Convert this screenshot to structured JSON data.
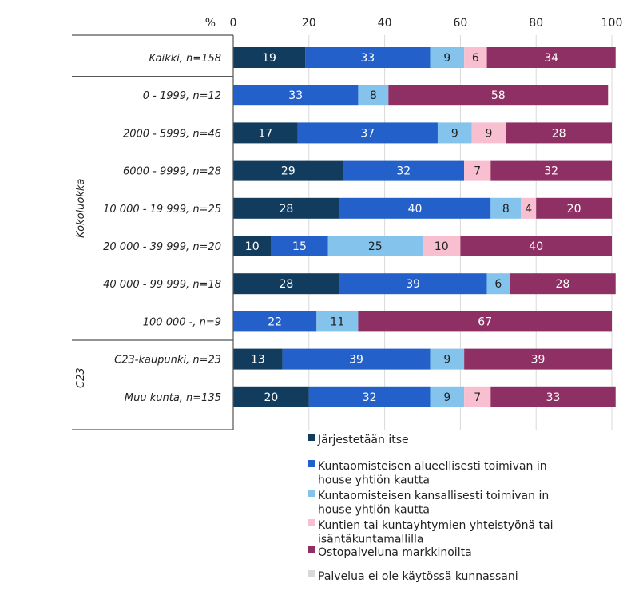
{
  "chart_data": {
    "type": "bar",
    "orientation": "horizontal",
    "stacked": true,
    "percent_symbol": "%",
    "xlim": [
      0,
      100
    ],
    "xticks": [
      0,
      20,
      40,
      60,
      80,
      100
    ],
    "grid": true,
    "categories": [
      "Kaikki, n=158",
      "0 - 1999, n=12",
      "2000 - 5999, n=46",
      "6000 - 9999, n=28",
      "10 000 - 19 999, n=25",
      "20 000 - 39 999, n=20",
      "40 000 - 99 999, n=18",
      "100 000 -, n=9",
      "C23-kaupunki, n=23",
      "Muu kunta, n=135"
    ],
    "groups": [
      {
        "label": "Kokoluokka",
        "first": 1,
        "last": 7
      },
      {
        "label": "C23",
        "first": 8,
        "last": 9
      }
    ],
    "series": [
      {
        "name": "Järjestetään itse",
        "color": "#123c5e",
        "text_color": "#ffffff",
        "values": [
          19,
          0,
          17,
          29,
          28,
          10,
          28,
          0,
          13,
          20
        ]
      },
      {
        "name": "Kuntaomisteisen alueellisesti toimivan in house yhtiön kautta",
        "color": "#2360c9",
        "text_color": "#ffffff",
        "values": [
          33,
          33,
          37,
          32,
          40,
          15,
          39,
          22,
          39,
          32
        ]
      },
      {
        "name": "Kuntaomisteisen kansallisesti toimivan in house yhtiön kautta",
        "color": "#83c3ec",
        "text_color": "#222222",
        "values": [
          9,
          8,
          9,
          0,
          8,
          25,
          6,
          11,
          9,
          9
        ]
      },
      {
        "name": "Kuntien tai kuntayhtymien yhteistyönä tai isäntäkuntamallilla",
        "color": "#f7bfd0",
        "text_color": "#222222",
        "values": [
          6,
          0,
          9,
          7,
          4,
          10,
          0,
          0,
          0,
          7
        ]
      },
      {
        "name": "Ostopalveluna markkinoilta",
        "color": "#8e3063",
        "text_color": "#ffffff",
        "values": [
          34,
          58,
          28,
          32,
          20,
          40,
          28,
          67,
          39,
          33
        ]
      },
      {
        "name": "Palvelua ei ole käytössä kunnassani",
        "color": "#d9d9d9",
        "text_color": "#222222",
        "values": [
          0,
          0,
          0,
          0,
          0,
          0,
          0,
          0,
          0,
          0
        ]
      }
    ],
    "legend": [
      {
        "color": "#123c5e",
        "lines": [
          "Järjestetään itse"
        ]
      },
      {
        "color": "#2360c9",
        "lines": [
          "Kuntaomisteisen alueellisesti toimivan in",
          "house yhtiön kautta"
        ]
      },
      {
        "color": "#83c3ec",
        "lines": [
          "Kuntaomisteisen kansallisesti toimivan in",
          "house yhtiön kautta"
        ]
      },
      {
        "color": "#f7bfd0",
        "lines": [
          "Kuntien tai kuntayhtymien yhteistyönä tai",
          "isäntäkuntamallilla"
        ]
      },
      {
        "color": "#8e3063",
        "lines": [
          "Ostopalveluna markkinoilta"
        ]
      },
      {
        "color": "#d9d9d9",
        "lines": [
          "Palvelua ei ole käytössä kunnassani"
        ]
      }
    ],
    "legend_position": "bottom"
  }
}
